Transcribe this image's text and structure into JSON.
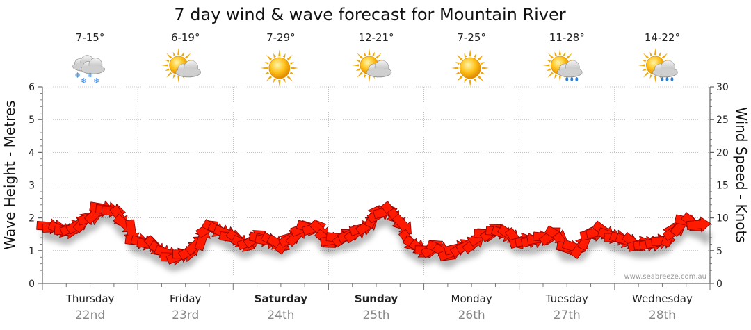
{
  "chart_data": {
    "type": "line",
    "title": "7 day wind & wave forecast for Mountain River",
    "ylabel_left": "Wave Height - Metres",
    "ylabel_right": "Wind Speed - Knots",
    "ylim_left": [
      0,
      6
    ],
    "ylim_right": [
      0,
      30
    ],
    "yticks_left": [
      "0",
      "1",
      "2",
      "3",
      "4",
      "5",
      "6"
    ],
    "yticks_right": [
      "0",
      "5",
      "10",
      "15",
      "20",
      "25",
      "30"
    ],
    "grid": true,
    "credit": "www.seabreeze.com.au",
    "days": [
      {
        "name": "Thursday",
        "date": "22nd",
        "bold": false,
        "temp": "7-15°",
        "icon": "cloud-snow-icon"
      },
      {
        "name": "Friday",
        "date": "23rd",
        "bold": false,
        "temp": "6-19°",
        "icon": "sun-cloud-icon"
      },
      {
        "name": "Saturday",
        "date": "24th",
        "bold": true,
        "temp": "7-29°",
        "icon": "sun-icon"
      },
      {
        "name": "Sunday",
        "date": "25th",
        "bold": true,
        "temp": "12-21°",
        "icon": "sun-cloud-icon"
      },
      {
        "name": "Monday",
        "date": "26th",
        "bold": false,
        "temp": "7-25°",
        "icon": "sun-icon"
      },
      {
        "name": "Tuesday",
        "date": "27th",
        "bold": false,
        "temp": "11-28°",
        "icon": "sun-cloud-rain-icon"
      },
      {
        "name": "Wednesday",
        "date": "28th",
        "bold": false,
        "temp": "14-22°",
        "icon": "sun-cloud-rain-icon"
      }
    ],
    "series": [
      {
        "name": "Wind Speed - Knots",
        "color": "#ff1a00",
        "x_hours": [
          0,
          3,
          6,
          9,
          12,
          15,
          18,
          21,
          24,
          27,
          30,
          33,
          36,
          39,
          42,
          45,
          48,
          51,
          54,
          57,
          60,
          63,
          66,
          69,
          72,
          75,
          78,
          81,
          84,
          87,
          90,
          93,
          96,
          99,
          102,
          105,
          108,
          111,
          114,
          117,
          120,
          123,
          126,
          129,
          132,
          135,
          138,
          141,
          144,
          147,
          150,
          153,
          156,
          159,
          162,
          165,
          168
        ],
        "values": [
          9,
          8.5,
          8,
          9,
          10,
          11.5,
          11,
          9,
          6.5,
          6,
          5,
          4,
          4.5,
          6,
          8.5,
          8,
          7,
          6,
          7,
          6.5,
          6,
          7,
          8.5,
          8.5,
          6.5,
          7,
          7.5,
          8.5,
          10.5,
          11,
          9.5,
          6,
          5,
          5.5,
          4.5,
          5.5,
          6,
          7.5,
          8,
          7.5,
          6.5,
          6.5,
          7,
          7.5,
          5.5,
          5.5,
          7.5,
          8,
          7,
          6.5,
          6,
          6,
          6.5,
          8,
          9.5,
          9,
          8
        ]
      }
    ]
  }
}
